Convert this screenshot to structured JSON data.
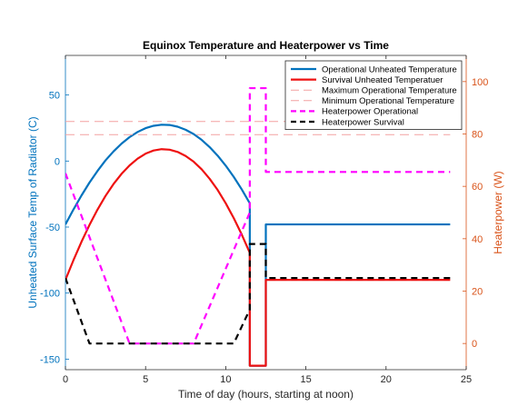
{
  "chart_data": {
    "type": "line",
    "title": "Equinox Temperature and Heaterpower vs Time",
    "xlabel": "Time of day (hours, starting at noon)",
    "ylabel_left": "Unheated Surface Temp of Radiator (C)",
    "ylabel_right": "Heaterpower (W)",
    "xlim": [
      0,
      25
    ],
    "ylim_left": [
      -158,
      80
    ],
    "ylim_right": [
      -10,
      110
    ],
    "xticks": [
      "0",
      "5",
      "10",
      "15",
      "20",
      "25"
    ],
    "xtick_values": [
      0,
      5,
      10,
      15,
      20,
      25
    ],
    "yticks_left": [
      "-150",
      "-100",
      "-50",
      "0",
      "50"
    ],
    "ytick_values_left": [
      -150,
      -100,
      -50,
      0,
      50
    ],
    "yticks_right": [
      "0",
      "20",
      "40",
      "60",
      "80",
      "100"
    ],
    "ytick_values_right": [
      0,
      20,
      40,
      60,
      80,
      100
    ],
    "grid": false,
    "legend_position": "top-right",
    "colors": {
      "left_axis": "#0072bd",
      "right_axis": "#d95319"
    },
    "series": [
      {
        "name": "Operational Unheated Temperature",
        "axis": "left",
        "color": "#0072bd",
        "style": "solid",
        "x": [
          0,
          0.5,
          1,
          1.5,
          2,
          2.5,
          3,
          3.5,
          4,
          4.5,
          5,
          5.5,
          6,
          6.5,
          7,
          7.5,
          8,
          8.5,
          9,
          9.5,
          10,
          10.5,
          11,
          11.5,
          11.5,
          12.5,
          12.5,
          24
        ],
        "y": [
          -48,
          -36.7,
          -26.1,
          -16.3,
          -7.5,
          0.5,
          7.3,
          13.2,
          18.1,
          22,
          24.9,
          26.7,
          27.5,
          27.3,
          26,
          23.7,
          20.4,
          16,
          10.5,
          4,
          -3.5,
          -12,
          -21.5,
          -32,
          -155,
          -155,
          -48,
          -48
        ]
      },
      {
        "name": "Survival Unheated Temperatuer",
        "axis": "left",
        "color": "#ee1111",
        "style": "solid",
        "x": [
          0,
          0.5,
          1,
          1.5,
          2,
          2.5,
          3,
          3.5,
          4,
          4.5,
          5,
          5.5,
          6,
          6.5,
          7,
          7.5,
          8,
          8.5,
          9,
          9.5,
          10,
          10.5,
          11,
          11.5,
          11.5,
          12.5,
          12.5,
          24
        ],
        "y": [
          -90,
          -75.1,
          -61.2,
          -48.4,
          -36.8,
          -26.4,
          -17.4,
          -9.7,
          -3.3,
          1.8,
          5.6,
          8,
          9,
          8.6,
          6.9,
          3.8,
          -0.5,
          -6.3,
          -13.5,
          -22,
          -32,
          -43.2,
          -55.7,
          -69.5,
          -155,
          -155,
          -90,
          -90
        ]
      },
      {
        "name": "Maximum Operational Temperature",
        "axis": "left",
        "color": "#f4a0a0",
        "style": "dashed",
        "x": [
          0,
          24
        ],
        "y": [
          30,
          30
        ]
      },
      {
        "name": "Minimum Operational Temperature",
        "axis": "left",
        "color": "#f4a0a0",
        "style": "dashed",
        "x": [
          0,
          24
        ],
        "y": [
          20,
          20
        ]
      },
      {
        "name": "Heaterpower Operational",
        "axis": "right",
        "color": "#ff00ff",
        "style": "dashed",
        "x": [
          0,
          4,
          8,
          11.5,
          11.5,
          12.5,
          12.5,
          24
        ],
        "y": [
          65,
          0,
          0,
          50,
          97.5,
          97.5,
          65.5,
          65.5
        ]
      },
      {
        "name": "Heaterpower Survival",
        "axis": "right",
        "color": "#000000",
        "style": "dashed",
        "x": [
          0,
          1.5,
          10.5,
          11.5,
          11.5,
          12.5,
          12.5,
          24
        ],
        "y": [
          25,
          0,
          0,
          13,
          38,
          38,
          25,
          25
        ]
      }
    ]
  }
}
